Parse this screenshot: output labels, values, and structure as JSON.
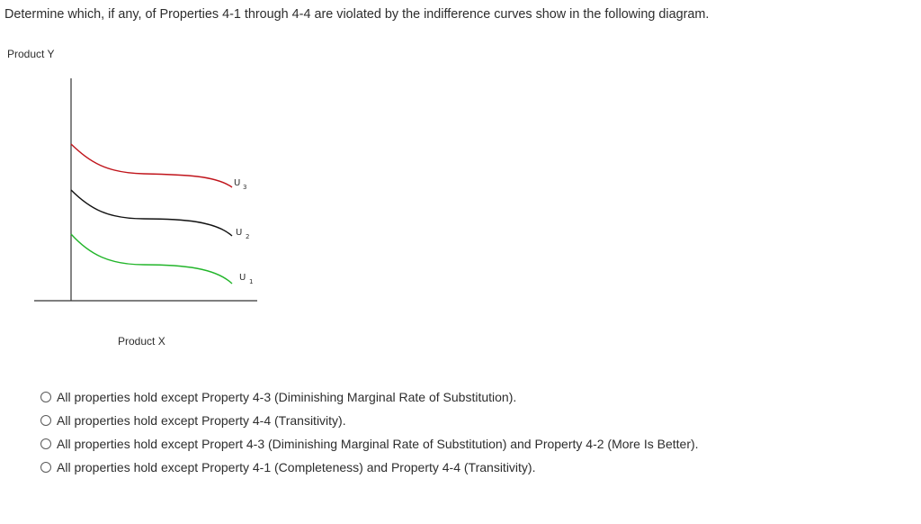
{
  "question": "Determine which, if any, of Properties 4-1 through 4-4 are violated by the indifference curves show in the following diagram.",
  "diagram": {
    "y_axis_label": "Product Y",
    "x_axis_label": "Product X",
    "curves": [
      {
        "name": "U",
        "subscript": "3",
        "color": "#c0141b"
      },
      {
        "name": "U",
        "subscript": "2",
        "color": "#111111"
      },
      {
        "name": "U",
        "subscript": "1",
        "color": "#22b52a"
      }
    ]
  },
  "options": [
    {
      "label": "All properties hold except Property 4-3 (Diminishing Marginal Rate of Substitution)."
    },
    {
      "label": "All properties hold except Property 4-4 (Transitivity)."
    },
    {
      "label": "All properties hold except Propert 4-3 (Diminishing Marginal Rate of Substitution) and Property 4-2 (More Is Better)."
    },
    {
      "label": "All properties hold except Property 4-1 (Completeness) and Property 4-4 (Transitivity)."
    }
  ]
}
